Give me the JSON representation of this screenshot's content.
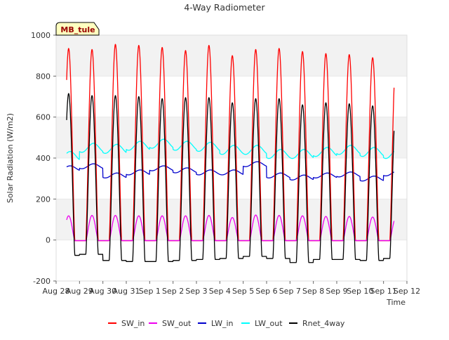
{
  "chart_data": {
    "type": "line",
    "title": "4-Way Radiometer",
    "xlabel": "Time",
    "ylabel": "Solar Radiation (W/m2)",
    "site_label": "MB_tule",
    "ylim": [
      -200,
      1000
    ],
    "y_ticks": [
      -200,
      0,
      200,
      400,
      600,
      800,
      1000
    ],
    "xlim": [
      "Aug 28",
      "Sep 12"
    ],
    "x_ticks": [
      "Aug 28",
      "Aug 29",
      "Aug 30",
      "Aug 31",
      "Sep 1",
      "Sep 2",
      "Sep 3",
      "Sep 4",
      "Sep 5",
      "Sep 6",
      "Sep 7",
      "Sep 8",
      "Sep 9",
      "Sep 10",
      "Sep 11",
      "Sep 12"
    ],
    "grid": "horizontal bands",
    "legend_position": "bottom",
    "start_date": "Aug 28",
    "data_start_day": 0.45,
    "data_end_day": 14.45,
    "series": [
      {
        "name": "SW_in",
        "color": "#ff0000",
        "kind": "solar",
        "night": -3,
        "daily_peak": [
          935,
          930,
          955,
          950,
          940,
          925,
          950,
          900,
          930,
          935,
          920,
          910,
          905,
          890
        ]
      },
      {
        "name": "SW_out",
        "color": "#ee00ee",
        "kind": "solar",
        "night": -3,
        "daily_peak": [
          118,
          120,
          120,
          118,
          118,
          118,
          120,
          110,
          122,
          120,
          118,
          115,
          115,
          112
        ]
      },
      {
        "name": "LW_in",
        "color": "#0000cc",
        "kind": "longwave",
        "daily_value": [
          350,
          360,
          315,
          330,
          350,
          340,
          330,
          330,
          370,
          315,
          305,
          315,
          320,
          300,
          325
        ]
      },
      {
        "name": "LW_out",
        "color": "#00ffff",
        "kind": "longwave",
        "daily_value": [
          410,
          450,
          445,
          460,
          470,
          460,
          455,
          440,
          440,
          420,
          420,
          430,
          440,
          430,
          420
        ]
      },
      {
        "name": "Rnet_4way",
        "color": "#000000",
        "kind": "solar",
        "daily_peak": [
          715,
          705,
          705,
          700,
          690,
          695,
          695,
          670,
          690,
          690,
          660,
          670,
          665,
          655
        ],
        "daily_night": [
          -75,
          -70,
          -100,
          -105,
          -105,
          -100,
          -95,
          -90,
          -80,
          -90,
          -110,
          -95,
          -95,
          -100,
          -90
        ]
      }
    ]
  }
}
